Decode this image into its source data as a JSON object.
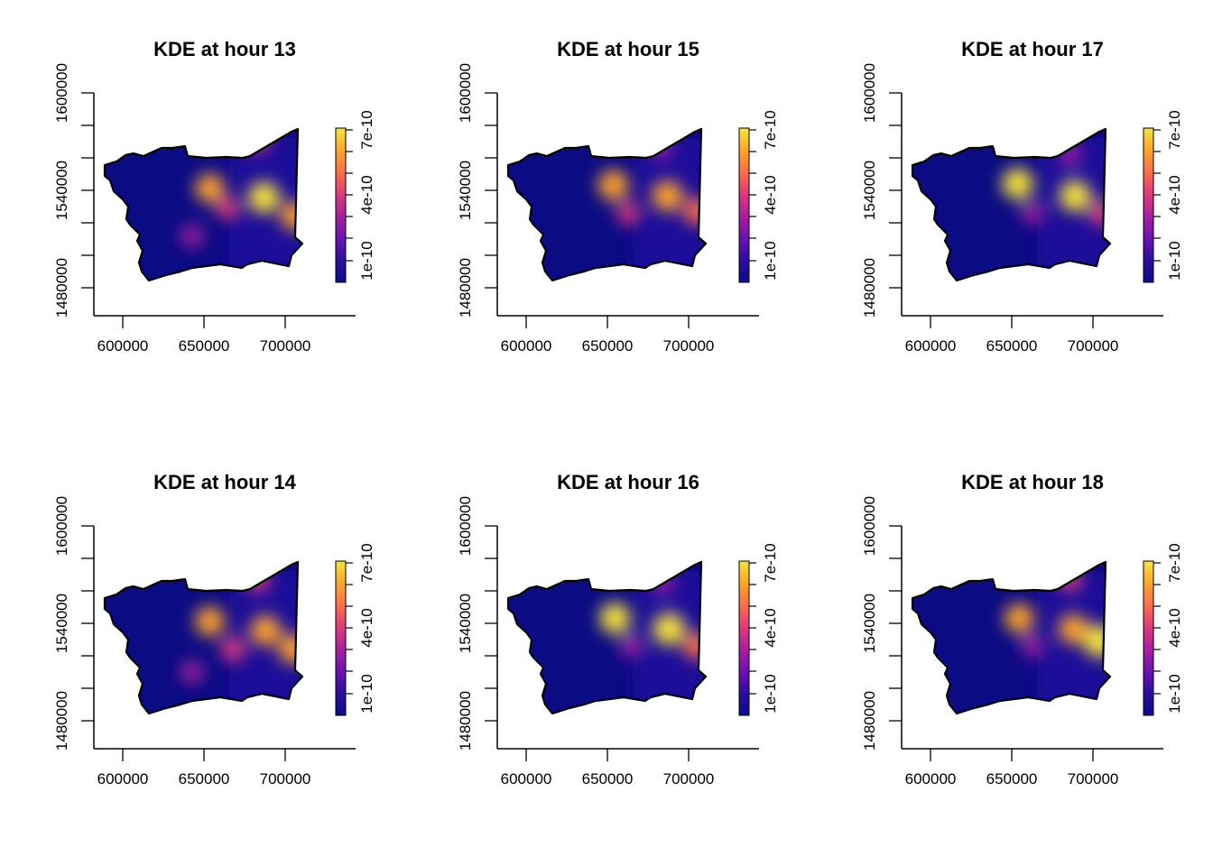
{
  "chart_data": [
    {
      "type": "heatmap",
      "title": "KDE at hour 13",
      "x_ticks": [
        "600000",
        "650000",
        "700000"
      ],
      "y_ticks": [
        "1480000",
        "1540000",
        "1600000"
      ],
      "legend_ticks": [
        "1e-10",
        "4e-10",
        "7e-10"
      ],
      "hotspots": [
        {
          "x": 651000,
          "y": 1543000,
          "level": 0.82
        },
        {
          "x": 684000,
          "y": 1537000,
          "level": 0.95
        },
        {
          "x": 680000,
          "y": 1575000,
          "level": 0.6
        },
        {
          "x": 703000,
          "y": 1525000,
          "level": 0.8
        },
        {
          "x": 662000,
          "y": 1530000,
          "level": 0.5
        },
        {
          "x": 640000,
          "y": 1512000,
          "level": 0.45
        }
      ]
    },
    {
      "type": "heatmap",
      "title": "KDE at hour 15",
      "x_ticks": [
        "600000",
        "650000",
        "700000"
      ],
      "y_ticks": [
        "1480000",
        "1540000",
        "1600000"
      ],
      "legend_ticks": [
        "1e-10",
        "4e-10",
        "7e-10"
      ],
      "hotspots": [
        {
          "x": 651000,
          "y": 1545000,
          "level": 0.9
        },
        {
          "x": 684000,
          "y": 1538000,
          "level": 0.92
        },
        {
          "x": 680000,
          "y": 1570000,
          "level": 0.45
        },
        {
          "x": 702000,
          "y": 1528000,
          "level": 0.7
        },
        {
          "x": 660000,
          "y": 1527000,
          "level": 0.5
        }
      ]
    },
    {
      "type": "heatmap",
      "title": "KDE at hour 17",
      "x_ticks": [
        "600000",
        "650000",
        "700000"
      ],
      "y_ticks": [
        "1480000",
        "1540000",
        "1600000"
      ],
      "legend_ticks": [
        "1e-10",
        "4e-10",
        "7e-10"
      ],
      "hotspots": [
        {
          "x": 651000,
          "y": 1546000,
          "level": 0.95
        },
        {
          "x": 686000,
          "y": 1538000,
          "level": 0.95
        },
        {
          "x": 683000,
          "y": 1565000,
          "level": 0.4
        },
        {
          "x": 702000,
          "y": 1527000,
          "level": 0.6
        },
        {
          "x": 660000,
          "y": 1527000,
          "level": 0.45
        }
      ]
    },
    {
      "type": "heatmap",
      "title": "KDE at hour 14",
      "x_ticks": [
        "600000",
        "650000",
        "700000"
      ],
      "y_ticks": [
        "1480000",
        "1540000",
        "1600000"
      ],
      "legend_ticks": [
        "1e-10",
        "4e-10",
        "7e-10"
      ],
      "hotspots": [
        {
          "x": 651000,
          "y": 1543000,
          "level": 0.85
        },
        {
          "x": 685000,
          "y": 1537000,
          "level": 0.9
        },
        {
          "x": 680000,
          "y": 1570000,
          "level": 0.55
        },
        {
          "x": 702000,
          "y": 1525000,
          "level": 0.85
        },
        {
          "x": 665000,
          "y": 1525000,
          "level": 0.6
        },
        {
          "x": 640000,
          "y": 1510000,
          "level": 0.45
        }
      ]
    },
    {
      "type": "heatmap",
      "title": "KDE at hour 16",
      "x_ticks": [
        "600000",
        "650000",
        "700000"
      ],
      "y_ticks": [
        "1480000",
        "1540000",
        "1600000"
      ],
      "legend_ticks": [
        "1e-10",
        "4e-10",
        "7e-10"
      ],
      "hotspots": [
        {
          "x": 652000,
          "y": 1545000,
          "level": 0.93
        },
        {
          "x": 685000,
          "y": 1538000,
          "level": 1.0
        },
        {
          "x": 681000,
          "y": 1568000,
          "level": 0.4
        },
        {
          "x": 702000,
          "y": 1527000,
          "level": 0.7
        },
        {
          "x": 662000,
          "y": 1527000,
          "level": 0.45
        }
      ]
    },
    {
      "type": "heatmap",
      "title": "KDE at hour 18",
      "x_ticks": [
        "600000",
        "650000",
        "700000"
      ],
      "y_ticks": [
        "1480000",
        "1540000",
        "1600000"
      ],
      "legend_ticks": [
        "1e-10",
        "4e-10",
        "7e-10"
      ],
      "hotspots": [
        {
          "x": 652000,
          "y": 1545000,
          "level": 0.85
        },
        {
          "x": 685000,
          "y": 1538000,
          "level": 0.85
        },
        {
          "x": 683000,
          "y": 1570000,
          "level": 0.5
        },
        {
          "x": 701000,
          "y": 1530000,
          "level": 1.0
        },
        {
          "x": 660000,
          "y": 1527000,
          "level": 0.45
        }
      ]
    }
  ],
  "colors": {
    "palette": [
      "#0c0c89",
      "#2a0ea0",
      "#6a13b3",
      "#a8209f",
      "#dd3a7d",
      "#ff6e4c",
      "#ffa52a",
      "#f7e33b"
    ]
  }
}
